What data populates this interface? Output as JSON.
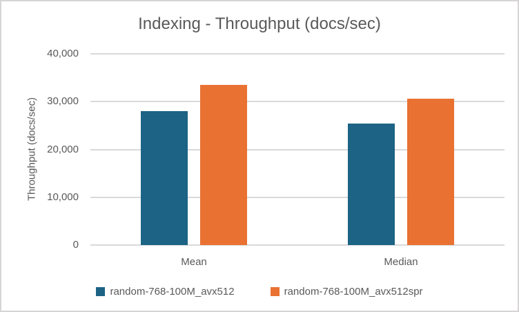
{
  "window": {
    "background": "#ffffff",
    "border_color": "#d6d4d4"
  },
  "chart_data": {
    "type": "bar",
    "title": "Indexing - Throughput (docs/sec)",
    "xlabel": "",
    "ylabel": "Throughput (docs/sec)",
    "categories": [
      "Mean",
      "Median"
    ],
    "series": [
      {
        "name": "random-768-100M_avx512",
        "color": "#1C6385",
        "values": [
          28000,
          25400
        ]
      },
      {
        "name": "random-768-100M_avx512spr",
        "color": "#E97132",
        "values": [
          33500,
          30600
        ]
      }
    ],
    "ylim": [
      0,
      40000
    ],
    "ytick_step": 10000,
    "ytick_labels": [
      "0",
      "10,000",
      "20,000",
      "30,000",
      "40,000"
    ],
    "grid": true,
    "legend_position": "bottom",
    "colors": {
      "text": "#595959",
      "gridline": "#D9D9D9"
    }
  }
}
